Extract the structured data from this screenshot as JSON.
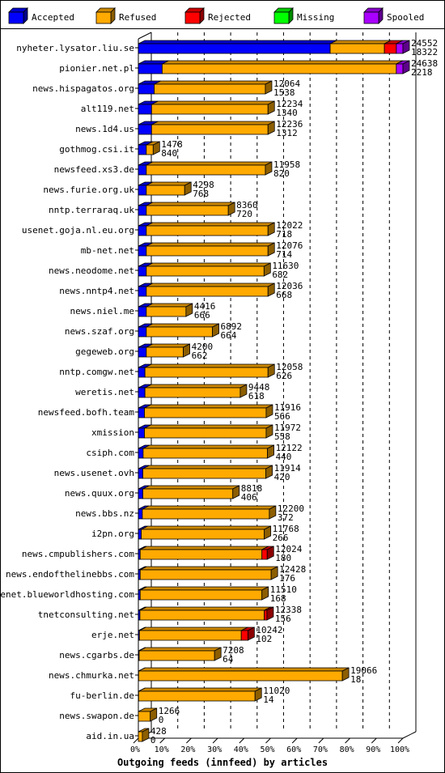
{
  "chart_data": {
    "type": "bar",
    "orientation": "horizontal",
    "stacked": true,
    "three_d": true,
    "xlabel": "Outgoing feeds (innfeed) by articles",
    "x_ticks": [
      "0%",
      "10%",
      "20%",
      "30%",
      "40%",
      "50%",
      "60%",
      "70%",
      "80%",
      "90%",
      "100%"
    ],
    "xlim": [
      0,
      100
    ],
    "grid": "vertical dashed at 10% steps",
    "legend_position": "top",
    "series": [
      {
        "name": "Accepted",
        "color": "#0000ff"
      },
      {
        "name": "Refused",
        "color": "#ffaa00"
      },
      {
        "name": "Rejected",
        "color": "#ff0000"
      },
      {
        "name": "Missing",
        "color": "#00ff00"
      },
      {
        "name": "Spooled",
        "color": "#aa00ff"
      }
    ],
    "rows": [
      {
        "host": "nyheter.lysator.liu.se",
        "total": "24552",
        "accepted": "18322",
        "segments": [
          72.5,
          20.5,
          4.5,
          0,
          2.5
        ]
      },
      {
        "host": "pionier.net.pl",
        "total": "24638",
        "accepted": "2218",
        "segments": [
          9.0,
          88.5,
          0,
          0,
          2.5
        ]
      },
      {
        "host": "news.hispagatos.org",
        "total": "12064",
        "accepted": "1538",
        "segments": [
          6.0,
          42.0,
          0,
          0,
          0
        ]
      },
      {
        "host": "alt119.net",
        "total": "12234",
        "accepted": "1340",
        "segments": [
          5.0,
          44.0,
          0,
          0,
          0
        ]
      },
      {
        "host": "news.1d4.us",
        "total": "12236",
        "accepted": "1312",
        "segments": [
          5.0,
          44.0,
          0,
          0,
          0
        ]
      },
      {
        "host": "gothmog.csi.it",
        "total": "1478",
        "accepted": "840",
        "segments": [
          3.0,
          2.6,
          0,
          0,
          0
        ]
      },
      {
        "host": "newsfeed.xs3.de",
        "total": "11958",
        "accepted": "820",
        "segments": [
          3.0,
          45.0,
          0,
          0,
          0
        ]
      },
      {
        "host": "news.furie.org.uk",
        "total": "4298",
        "accepted": "768",
        "segments": [
          3.0,
          14.5,
          0,
          0,
          0
        ]
      },
      {
        "host": "nntp.terraraq.uk",
        "total": "8360",
        "accepted": "720",
        "segments": [
          3.0,
          31.0,
          0,
          0,
          0
        ]
      },
      {
        "host": "usenet.goja.nl.eu.org",
        "total": "12022",
        "accepted": "718",
        "segments": [
          3.0,
          46.0,
          0,
          0,
          0
        ]
      },
      {
        "host": "mb-net.net",
        "total": "12076",
        "accepted": "714",
        "segments": [
          3.0,
          46.0,
          0,
          0,
          0
        ]
      },
      {
        "host": "news.neodome.net",
        "total": "11630",
        "accepted": "682",
        "segments": [
          3.0,
          44.5,
          0,
          0,
          0
        ]
      },
      {
        "host": "news.nntp4.net",
        "total": "12036",
        "accepted": "668",
        "segments": [
          3.0,
          46.0,
          0,
          0,
          0
        ]
      },
      {
        "host": "news.niel.me",
        "total": "4416",
        "accepted": "666",
        "segments": [
          3.0,
          15.0,
          0,
          0,
          0
        ]
      },
      {
        "host": "news.szaf.org",
        "total": "6892",
        "accepted": "664",
        "segments": [
          3.0,
          25.0,
          0,
          0,
          0
        ]
      },
      {
        "host": "gegeweb.org",
        "total": "4200",
        "accepted": "662",
        "segments": [
          3.0,
          14.0,
          0,
          0,
          0
        ]
      },
      {
        "host": "nntp.comgw.net",
        "total": "12058",
        "accepted": "626",
        "segments": [
          2.5,
          46.5,
          0,
          0,
          0
        ]
      },
      {
        "host": "weretis.net",
        "total": "9448",
        "accepted": "618",
        "segments": [
          2.5,
          36.0,
          0,
          0,
          0
        ]
      },
      {
        "host": "newsfeed.bofh.team",
        "total": "11916",
        "accepted": "566",
        "segments": [
          2.3,
          46.0,
          0,
          0,
          0
        ]
      },
      {
        "host": "xmission",
        "total": "11972",
        "accepted": "558",
        "segments": [
          2.3,
          46.0,
          0,
          0,
          0
        ]
      },
      {
        "host": "csiph.com",
        "total": "12122",
        "accepted": "440",
        "segments": [
          1.8,
          47.0,
          0,
          0,
          0
        ]
      },
      {
        "host": "news.usenet.ovh",
        "total": "11914",
        "accepted": "420",
        "segments": [
          1.7,
          46.5,
          0,
          0,
          0
        ]
      },
      {
        "host": "news.quux.org",
        "total": "8818",
        "accepted": "406",
        "segments": [
          1.7,
          34.0,
          0,
          0,
          0
        ]
      },
      {
        "host": "news.bbs.nz",
        "total": "12200",
        "accepted": "372",
        "segments": [
          1.5,
          48.0,
          0,
          0,
          0
        ]
      },
      {
        "host": "i2pn.org",
        "total": "11768",
        "accepted": "266",
        "segments": [
          1.1,
          46.5,
          0,
          0,
          0
        ]
      },
      {
        "host": "news.cmpublishers.com",
        "total": "12024",
        "accepted": "180",
        "segments": [
          0.7,
          46.0,
          2.0,
          0,
          0
        ]
      },
      {
        "host": "news.endofthelinebbs.com",
        "total": "12428",
        "accepted": "176",
        "segments": [
          0.7,
          49.5,
          0,
          0,
          0
        ]
      },
      {
        "host": "usenet.blueworldhosting.com",
        "total": "11510",
        "accepted": "168",
        "segments": [
          0.7,
          46.0,
          0,
          0,
          0
        ]
      },
      {
        "host": "tnetconsulting.net",
        "total": "12338",
        "accepted": "156",
        "segments": [
          0.6,
          47.0,
          1.0,
          0,
          0
        ]
      },
      {
        "host": "erje.net",
        "total": "10242",
        "accepted": "102",
        "segments": [
          0.4,
          38.5,
          2.5,
          0,
          0
        ]
      },
      {
        "host": "news.cgarbs.de",
        "total": "7208",
        "accepted": "64",
        "segments": [
          0.3,
          28.5,
          0,
          0,
          0
        ]
      },
      {
        "host": "news.chmurka.net",
        "total": "19066",
        "accepted": "18",
        "segments": [
          0.1,
          77.0,
          0,
          0,
          0
        ]
      },
      {
        "host": "fu-berlin.de",
        "total": "11020",
        "accepted": "14",
        "segments": [
          0.1,
          44.0,
          0,
          0,
          0
        ]
      },
      {
        "host": "news.swapon.de",
        "total": "1266",
        "accepted": "0",
        "segments": [
          0,
          4.5,
          0,
          0,
          0
        ]
      },
      {
        "host": "aid.in.ua",
        "total": "428",
        "accepted": "0",
        "segments": [
          0,
          1.5,
          0,
          0,
          0
        ]
      }
    ]
  }
}
